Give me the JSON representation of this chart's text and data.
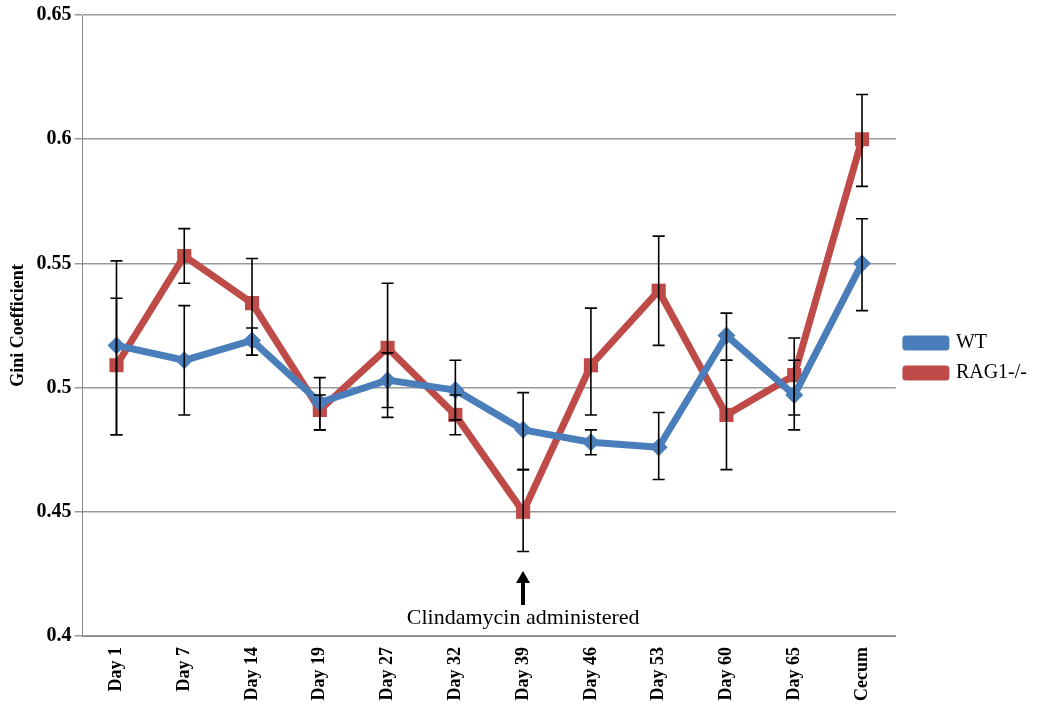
{
  "chart_data": {
    "type": "line",
    "ylabel": "Gini Coefficient",
    "categories": [
      "Day 1",
      "Day 7",
      "Day 14",
      "Day 19",
      "Day 27",
      "Day 32",
      "Day 39",
      "Day 46",
      "Day 53",
      "Day 60",
      "Day 65",
      "Cecum"
    ],
    "series": [
      {
        "name": "WT",
        "color": "#4a7ebb",
        "marker": "diamond",
        "values": [
          0.517,
          0.511,
          0.519,
          0.494,
          0.503,
          0.499,
          0.483,
          0.478,
          0.476,
          0.521,
          0.497,
          0.55
        ],
        "errors": [
          [
            0.481,
            0.536
          ],
          [
            0.489,
            0.533
          ],
          [
            0.513,
            0.524
          ],
          [
            0.483,
            0.497
          ],
          [
            0.492,
            0.514
          ],
          [
            0.487,
            0.511
          ],
          [
            0.467,
            0.498
          ],
          [
            0.473,
            0.483
          ],
          [
            0.463,
            0.49
          ],
          [
            0.511,
            0.53
          ],
          [
            0.483,
            0.511
          ],
          [
            0.531,
            0.568
          ]
        ]
      },
      {
        "name": "RAG1-/-",
        "color": "#be4b48",
        "marker": "square",
        "values": [
          0.509,
          0.553,
          0.534,
          0.491,
          0.516,
          0.489,
          0.45,
          0.509,
          0.539,
          0.489,
          0.505,
          0.6
        ],
        "errors": [
          [
            0.481,
            0.551
          ],
          [
            0.542,
            0.564
          ],
          [
            0.513,
            0.552
          ],
          [
            0.483,
            0.504
          ],
          [
            0.488,
            0.542
          ],
          [
            0.481,
            0.497
          ],
          [
            0.434,
            0.467
          ],
          [
            0.489,
            0.532
          ],
          [
            0.517,
            0.561
          ],
          [
            0.467,
            0.511
          ],
          [
            0.489,
            0.52
          ],
          [
            0.581,
            0.618
          ]
        ]
      }
    ],
    "ylim": [
      0.4,
      0.65
    ],
    "yticks": [
      0.4,
      0.45,
      0.5,
      0.55,
      0.6,
      0.65
    ],
    "grid": "y",
    "legend": "right",
    "line_style": "solid",
    "annotations": [
      "Clindamycin administered"
    ]
  }
}
